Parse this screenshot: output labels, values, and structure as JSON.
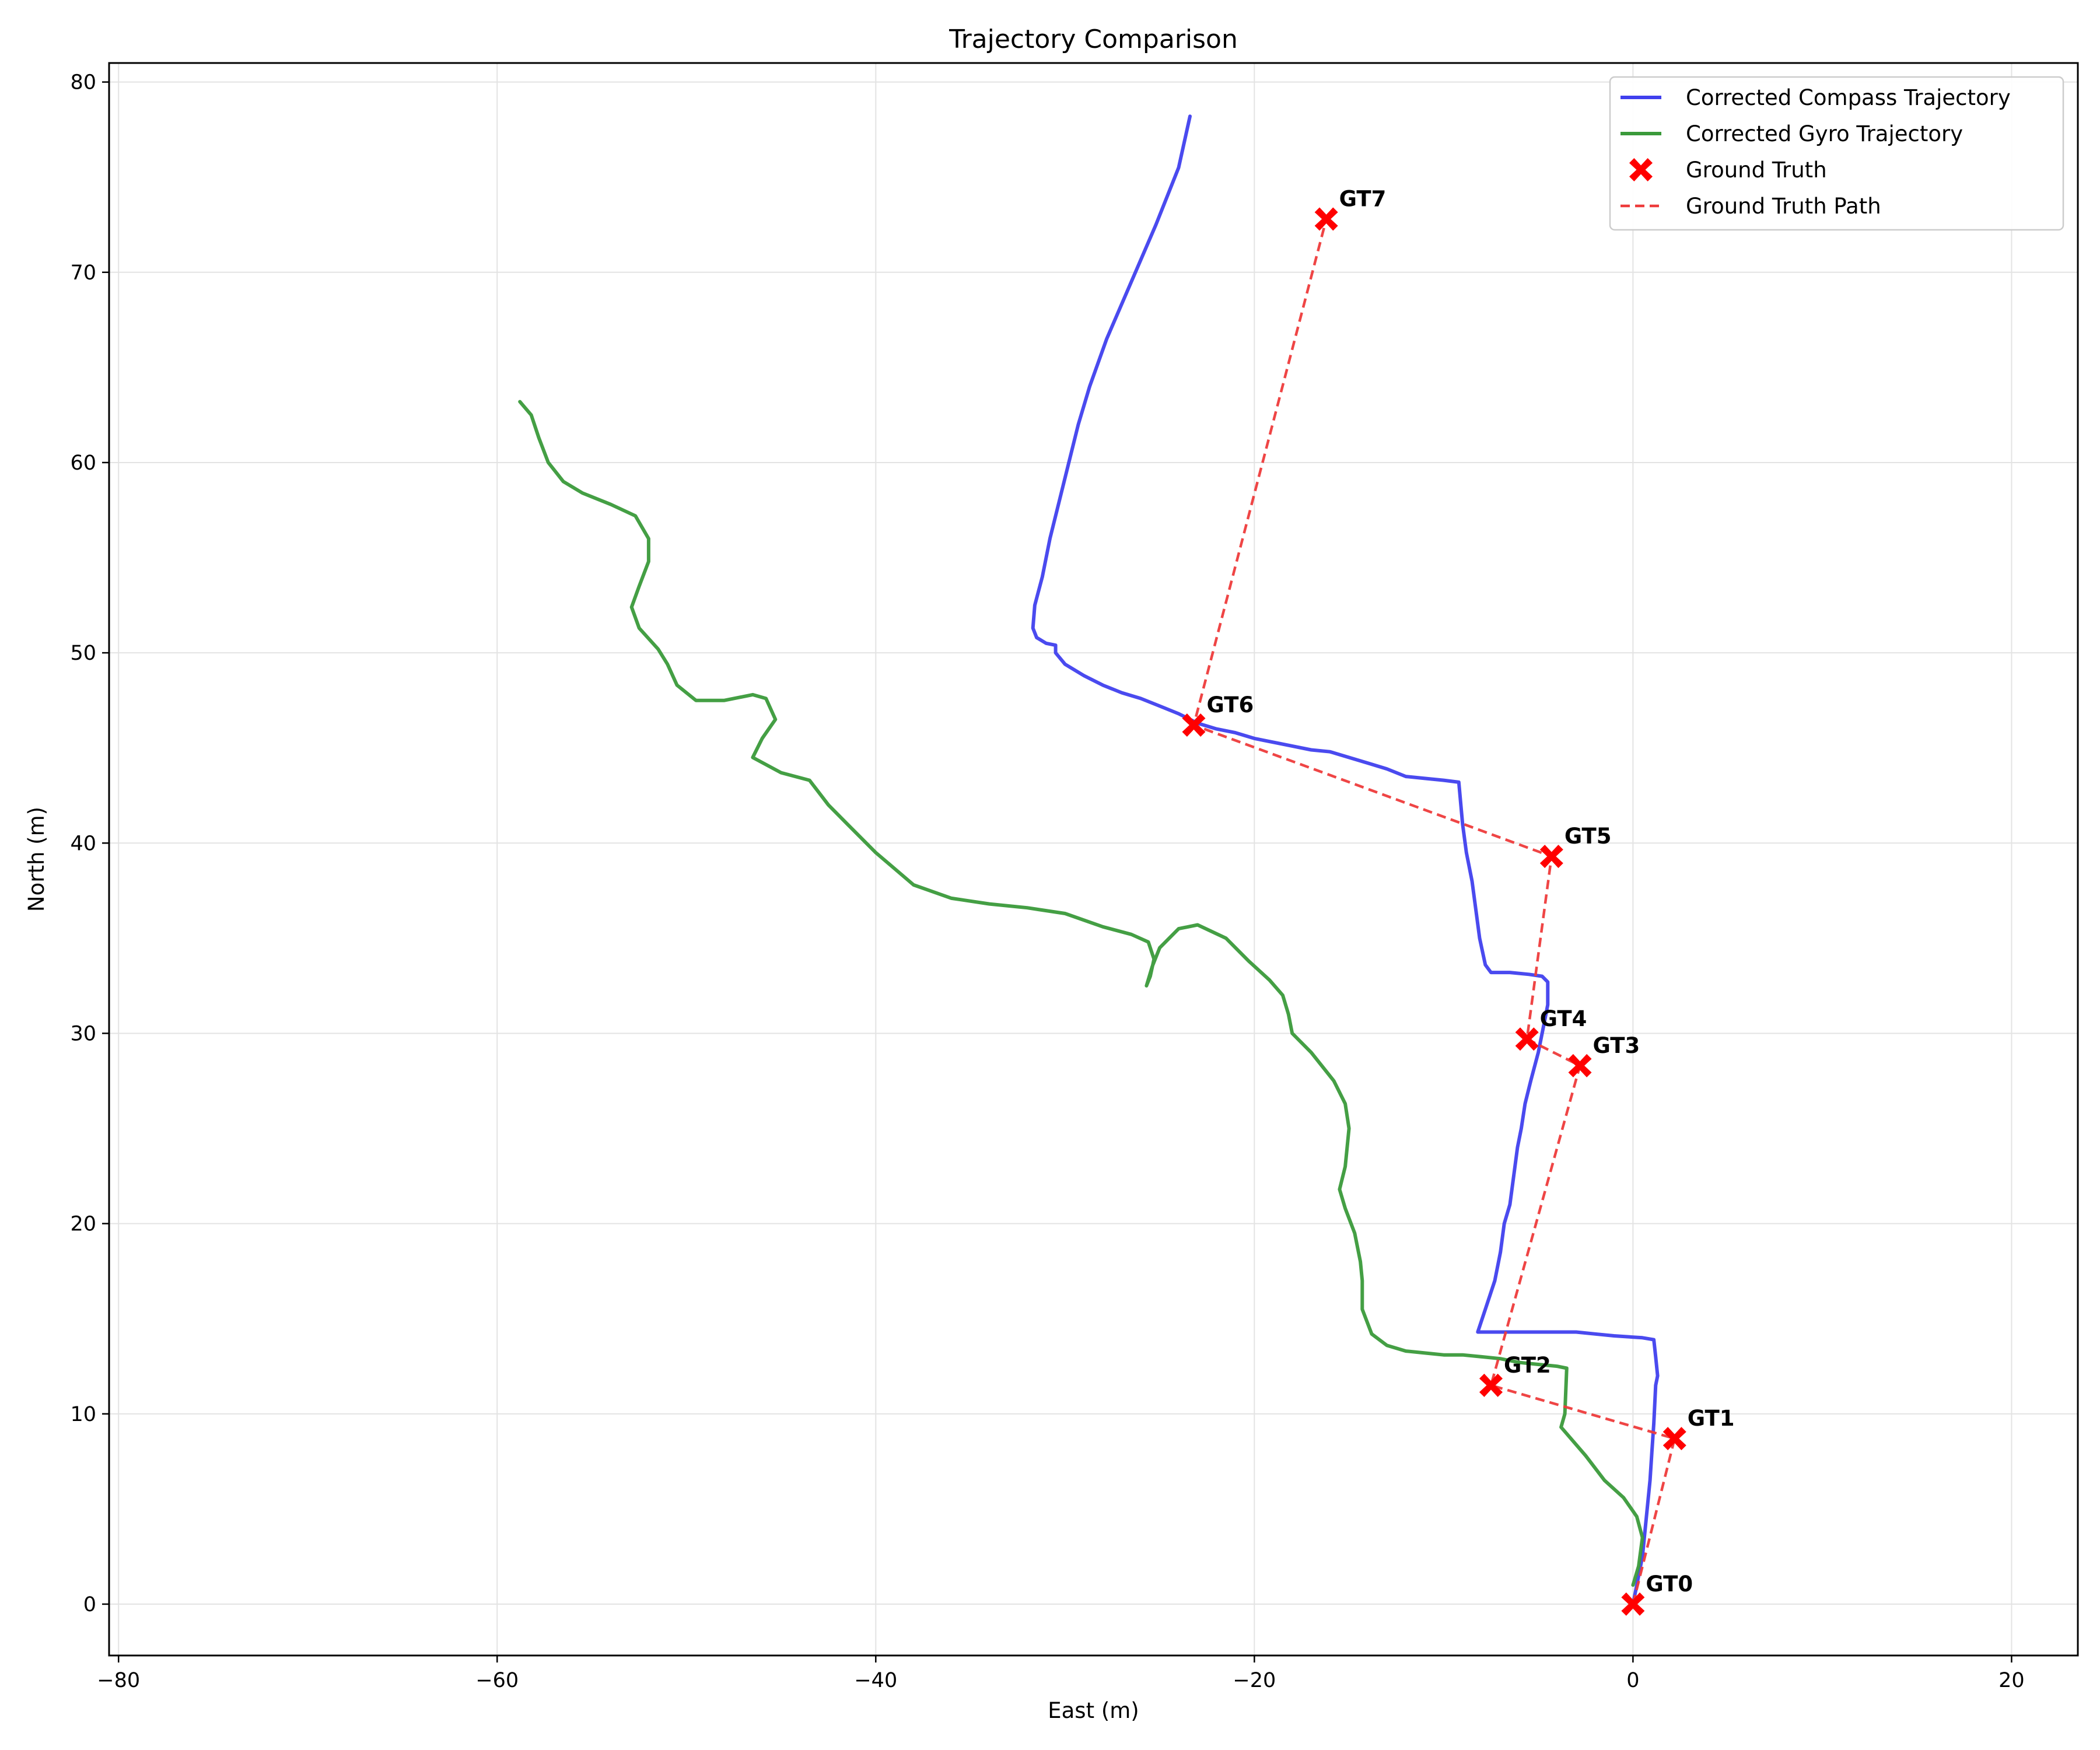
{
  "chart_data": {
    "type": "line",
    "title": "Trajectory Comparison",
    "xlabel": "East (m)",
    "ylabel": "North (m)",
    "xlim": [
      -80.5,
      23.5
    ],
    "ylim": [
      -2.7,
      81
    ],
    "xticks": [
      -80,
      -60,
      -40,
      -20,
      0,
      20
    ],
    "yticks": [
      0,
      10,
      20,
      30,
      40,
      50,
      60,
      70,
      80
    ],
    "xtick_labels": [
      "−80",
      "−60",
      "−40",
      "−20",
      "0",
      "20"
    ],
    "ytick_labels": [
      "0",
      "10",
      "20",
      "30",
      "40",
      "50",
      "60",
      "70",
      "80"
    ],
    "grid": true,
    "legend_position": "top-right",
    "series": [
      {
        "name": "Corrected Compass Trajectory",
        "kind": "line",
        "color": "#4040ee",
        "points": [
          [
            0,
            0
          ],
          [
            0.2,
            1
          ],
          [
            0.5,
            2.5
          ],
          [
            0.7,
            4.5
          ],
          [
            0.9,
            6.5
          ],
          [
            1.0,
            8
          ],
          [
            1.1,
            9.5
          ],
          [
            1.2,
            11.5
          ],
          [
            1.3,
            12
          ],
          [
            1.2,
            13
          ],
          [
            1.1,
            13.9
          ],
          [
            0.5,
            14
          ],
          [
            -1,
            14.1
          ],
          [
            -2,
            14.2
          ],
          [
            -3,
            14.3
          ],
          [
            -4.5,
            14.3
          ],
          [
            -6,
            14.3
          ],
          [
            -8.2,
            14.3
          ],
          [
            -7.8,
            15.5
          ],
          [
            -7.3,
            17
          ],
          [
            -7,
            18.5
          ],
          [
            -6.8,
            20
          ],
          [
            -6.5,
            21
          ],
          [
            -6.3,
            22.5
          ],
          [
            -6.1,
            24
          ],
          [
            -5.9,
            25
          ],
          [
            -5.7,
            26.3
          ],
          [
            -5.4,
            27.5
          ],
          [
            -5,
            29
          ],
          [
            -4.7,
            30.5
          ],
          [
            -4.5,
            31.5
          ],
          [
            -4.5,
            32.7
          ],
          [
            -4.8,
            33
          ],
          [
            -5.5,
            33.1
          ],
          [
            -6.5,
            33.2
          ],
          [
            -7.5,
            33.2
          ],
          [
            -7.8,
            33.6
          ],
          [
            -8.1,
            35
          ],
          [
            -8.3,
            36.5
          ],
          [
            -8.5,
            38
          ],
          [
            -8.8,
            39.5
          ],
          [
            -9,
            41
          ],
          [
            -9.2,
            43.2
          ],
          [
            -10,
            43.3
          ],
          [
            -11,
            43.4
          ],
          [
            -12,
            43.5
          ],
          [
            -13,
            43.9
          ],
          [
            -14,
            44.2
          ],
          [
            -15,
            44.5
          ],
          [
            -16,
            44.8
          ],
          [
            -17,
            44.9
          ],
          [
            -18,
            45.1
          ],
          [
            -19,
            45.3
          ],
          [
            -20,
            45.5
          ],
          [
            -21,
            45.8
          ],
          [
            -22,
            46
          ],
          [
            -23,
            46.3
          ],
          [
            -24,
            46.8
          ],
          [
            -25,
            47.2
          ],
          [
            -26,
            47.6
          ],
          [
            -27,
            47.9
          ],
          [
            -28,
            48.3
          ],
          [
            -29,
            48.8
          ],
          [
            -30,
            49.4
          ],
          [
            -30.5,
            50
          ],
          [
            -30.5,
            50.4
          ],
          [
            -31,
            50.5
          ],
          [
            -31.5,
            50.8
          ],
          [
            -31.7,
            51.3
          ],
          [
            -31.6,
            52.5
          ],
          [
            -31.2,
            54
          ],
          [
            -30.8,
            56
          ],
          [
            -30.3,
            58
          ],
          [
            -29.8,
            60
          ],
          [
            -29.3,
            62
          ],
          [
            -28.7,
            64
          ],
          [
            -27.8,
            66.5
          ],
          [
            -26.5,
            69.5
          ],
          [
            -25.2,
            72.5
          ],
          [
            -24,
            75.5
          ],
          [
            -23.4,
            78.2
          ]
        ]
      },
      {
        "name": "Corrected Gyro Trajectory",
        "kind": "line",
        "color": "#3a9a3a",
        "points": [
          [
            0,
            1
          ],
          [
            0.3,
            2
          ],
          [
            0.5,
            3.5
          ],
          [
            0.2,
            4.6
          ],
          [
            -0.5,
            5.6
          ],
          [
            -1.5,
            6.5
          ],
          [
            -2.5,
            7.8
          ],
          [
            -3.8,
            9.3
          ],
          [
            -3.6,
            10
          ],
          [
            -3.5,
            12.4
          ],
          [
            -4,
            12.5
          ],
          [
            -5,
            12.6
          ],
          [
            -6,
            12.7
          ],
          [
            -7,
            12.9
          ],
          [
            -8,
            13
          ],
          [
            -9,
            13.1
          ],
          [
            -10,
            13.1
          ],
          [
            -11,
            13.2
          ],
          [
            -12,
            13.3
          ],
          [
            -13,
            13.6
          ],
          [
            -13.8,
            14.2
          ],
          [
            -14.3,
            15.5
          ],
          [
            -14.3,
            17
          ],
          [
            -14.4,
            18
          ],
          [
            -14.7,
            19.5
          ],
          [
            -15.2,
            20.8
          ],
          [
            -15.5,
            21.8
          ],
          [
            -15.2,
            23
          ],
          [
            -15,
            25
          ],
          [
            -15.2,
            26.3
          ],
          [
            -15.8,
            27.5
          ],
          [
            -17,
            29
          ],
          [
            -18,
            30
          ],
          [
            -18.2,
            31
          ],
          [
            -18.5,
            32
          ],
          [
            -19.2,
            32.8
          ],
          [
            -20.3,
            33.8
          ],
          [
            -21.5,
            35
          ],
          [
            -23,
            35.7
          ],
          [
            -24,
            35.5
          ],
          [
            -25,
            34.5
          ],
          [
            -25.4,
            33.5
          ],
          [
            -25.7,
            32.5
          ],
          [
            -25.5,
            33
          ],
          [
            -25.3,
            33.9
          ],
          [
            -25.6,
            34.8
          ],
          [
            -26.5,
            35.2
          ],
          [
            -28,
            35.6
          ],
          [
            -30,
            36.3
          ],
          [
            -32,
            36.6
          ],
          [
            -34,
            36.8
          ],
          [
            -36,
            37.1
          ],
          [
            -38,
            37.8
          ],
          [
            -40,
            39.5
          ],
          [
            -41.5,
            41
          ],
          [
            -42.5,
            42
          ],
          [
            -43.5,
            43.3
          ],
          [
            -45,
            43.7
          ],
          [
            -46.5,
            44.5
          ],
          [
            -46,
            45.5
          ],
          [
            -45.3,
            46.5
          ],
          [
            -45.8,
            47.6
          ],
          [
            -46.5,
            47.8
          ],
          [
            -48,
            47.5
          ],
          [
            -49.5,
            47.5
          ],
          [
            -50.5,
            48.3
          ],
          [
            -51,
            49.4
          ],
          [
            -51.5,
            50.2
          ],
          [
            -52.5,
            51.3
          ],
          [
            -52.9,
            52.4
          ],
          [
            -52.5,
            53.5
          ],
          [
            -52,
            54.8
          ],
          [
            -52,
            56
          ],
          [
            -52.7,
            57.2
          ],
          [
            -54,
            57.8
          ],
          [
            -55.5,
            58.4
          ],
          [
            -56.5,
            59
          ],
          [
            -57.3,
            60
          ],
          [
            -57.8,
            61.3
          ],
          [
            -58.2,
            62.5
          ],
          [
            -58.8,
            63.2
          ]
        ]
      },
      {
        "name": "Ground Truth",
        "kind": "marker",
        "color": "#ff0000",
        "points": [
          [
            0,
            0
          ],
          [
            2.2,
            8.7
          ],
          [
            -7.5,
            11.5
          ],
          [
            -2.8,
            28.3
          ],
          [
            -5.6,
            29.7
          ],
          [
            -4.3,
            39.3
          ],
          [
            -23.2,
            46.2
          ],
          [
            -16.2,
            72.8
          ]
        ],
        "labels": [
          "GT0",
          "GT1",
          "GT2",
          "GT3",
          "GT4",
          "GT5",
          "GT6",
          "GT7"
        ]
      },
      {
        "name": "Ground Truth Path",
        "kind": "dashed",
        "color": "#ee3b3b",
        "points": [
          [
            0,
            0
          ],
          [
            2.2,
            8.7
          ],
          [
            -7.5,
            11.5
          ],
          [
            -2.8,
            28.3
          ],
          [
            -5.6,
            29.7
          ],
          [
            -4.3,
            39.3
          ],
          [
            -23.2,
            46.2
          ],
          [
            -16.2,
            72.8
          ]
        ]
      }
    ]
  }
}
